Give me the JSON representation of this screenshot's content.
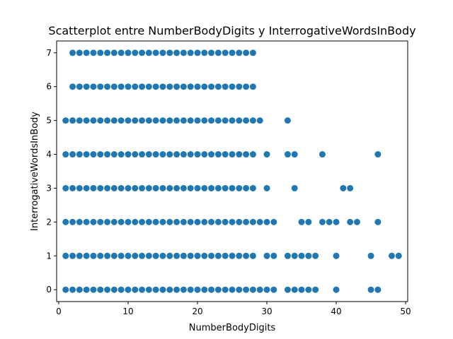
{
  "chart_data": {
    "type": "scatter",
    "title": "Scatterplot entre NumberBodyDigits y InterrogativeWordsInBody",
    "xlabel": "NumberBodyDigits",
    "ylabel": "InterrogativeWordsInBody",
    "xlim": [
      -0.3,
      50.3
    ],
    "ylim": [
      -0.35,
      7.35
    ],
    "xticks": [
      0,
      10,
      20,
      30,
      40,
      50
    ],
    "yticks": [
      0,
      1,
      2,
      3,
      4,
      5,
      6,
      7
    ],
    "grid": false,
    "marker_color": "#1f77b4",
    "points": [
      {
        "y": 7,
        "x_range": [
          2,
          28
        ]
      },
      {
        "y": 6,
        "x_range": [
          2,
          28
        ]
      },
      {
        "y": 5,
        "x_range": [
          1,
          28
        ],
        "extra_x": [
          29,
          33
        ]
      },
      {
        "y": 4,
        "x_range": [
          1,
          28
        ],
        "extra_x": [
          30,
          33,
          34,
          38,
          46
        ]
      },
      {
        "y": 3,
        "x_range": [
          1,
          28
        ],
        "extra_x": [
          30,
          34,
          41,
          42
        ]
      },
      {
        "y": 2,
        "x_range": [
          1,
          28
        ],
        "extra_x": [
          29,
          30,
          31,
          35,
          36,
          38,
          39,
          40,
          42,
          43,
          46
        ]
      },
      {
        "y": 1,
        "x_range": [
          1,
          28
        ],
        "extra_x": [
          30,
          31,
          33,
          34,
          35,
          36,
          37,
          40,
          45,
          48,
          49
        ]
      },
      {
        "y": 0,
        "x_range": [
          1,
          28
        ],
        "extra_x": [
          29,
          30,
          31,
          33,
          34,
          35,
          36,
          37,
          40,
          45,
          46
        ]
      }
    ]
  }
}
